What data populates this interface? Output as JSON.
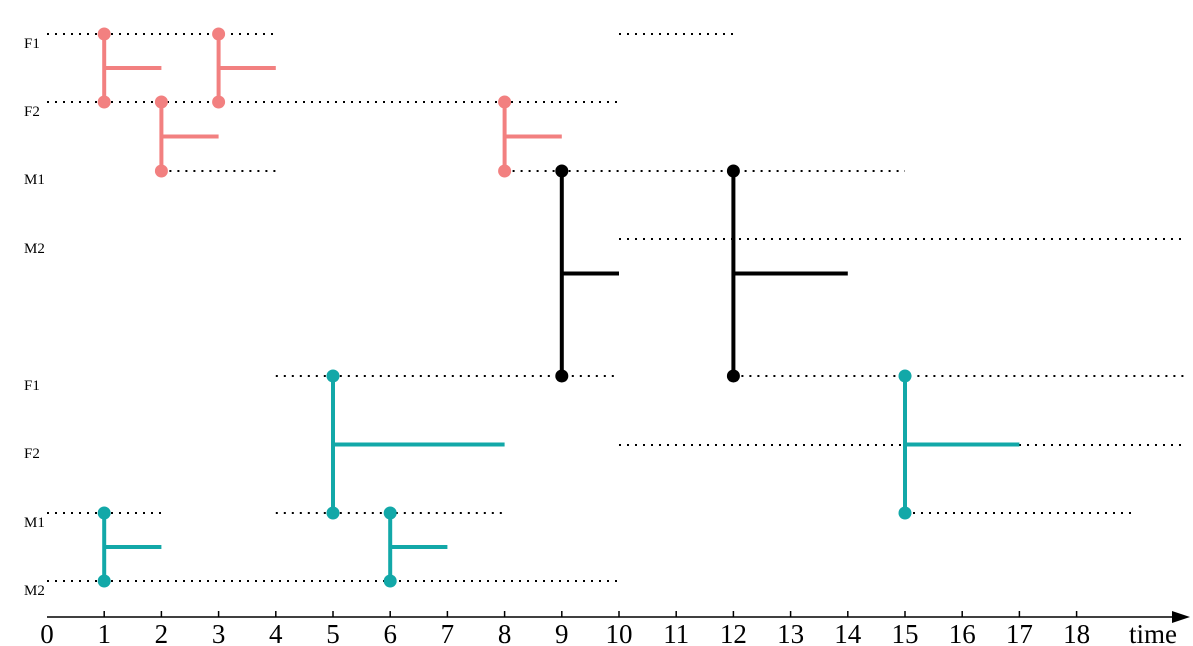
{
  "colors": {
    "pink": "#f28080",
    "teal": "#12a8a8",
    "black": "#000000",
    "axis": "#000000"
  },
  "row_labels": [
    "F1",
    "F2",
    "M1",
    "M2",
    "F1",
    "F2",
    "M1",
    "M2"
  ],
  "axis": {
    "ticks": [
      "0",
      "1",
      "2",
      "3",
      "4",
      "5",
      "6",
      "7",
      "8",
      "9",
      "10",
      "11",
      "12",
      "13",
      "14",
      "15",
      "16",
      "17",
      "18"
    ],
    "title": "time"
  },
  "dotted_segments": [
    {
      "row": 0,
      "from": 0,
      "to": 4
    },
    {
      "row": 0,
      "from": 10,
      "to": 12
    },
    {
      "row": 1,
      "from": 0,
      "to": 10
    },
    {
      "row": 2,
      "from": 2,
      "to": 4
    },
    {
      "row": 2,
      "from": 8,
      "to": 15
    },
    {
      "row": 3,
      "from": 10,
      "to": 20
    },
    {
      "row": 4,
      "from": 4,
      "to": 10
    },
    {
      "row": 4,
      "from": 12,
      "to": 20
    },
    {
      "row": 5,
      "from": 10,
      "to": 20
    },
    {
      "row": 6,
      "from": 0,
      "to": 2
    },
    {
      "row": 6,
      "from": 4,
      "to": 8
    },
    {
      "row": 6,
      "from": 15,
      "to": 19
    },
    {
      "row": 7,
      "from": 0,
      "to": 10
    }
  ],
  "events": [
    {
      "t": 1,
      "top": 0,
      "bottom": 1,
      "end": 2,
      "color": "pink"
    },
    {
      "t": 3,
      "top": 0,
      "bottom": 1,
      "end": 4,
      "color": "pink"
    },
    {
      "t": 2,
      "top": 1,
      "bottom": 2,
      "end": 3,
      "color": "pink"
    },
    {
      "t": 8,
      "top": 1,
      "bottom": 2,
      "end": 9,
      "color": "pink"
    },
    {
      "t": 9,
      "top": 2,
      "bottom": 4,
      "end": 10,
      "color": "black"
    },
    {
      "t": 12,
      "top": 2,
      "bottom": 4,
      "end": 14,
      "color": "black"
    },
    {
      "t": 5,
      "top": 4,
      "bottom": 6,
      "end": 8,
      "color": "teal"
    },
    {
      "t": 15,
      "top": 4,
      "bottom": 6,
      "end": 17,
      "color": "teal"
    },
    {
      "t": 1,
      "top": 6,
      "bottom": 7,
      "end": 2,
      "color": "teal"
    },
    {
      "t": 6,
      "top": 6,
      "bottom": 7,
      "end": 7,
      "color": "teal"
    }
  ]
}
